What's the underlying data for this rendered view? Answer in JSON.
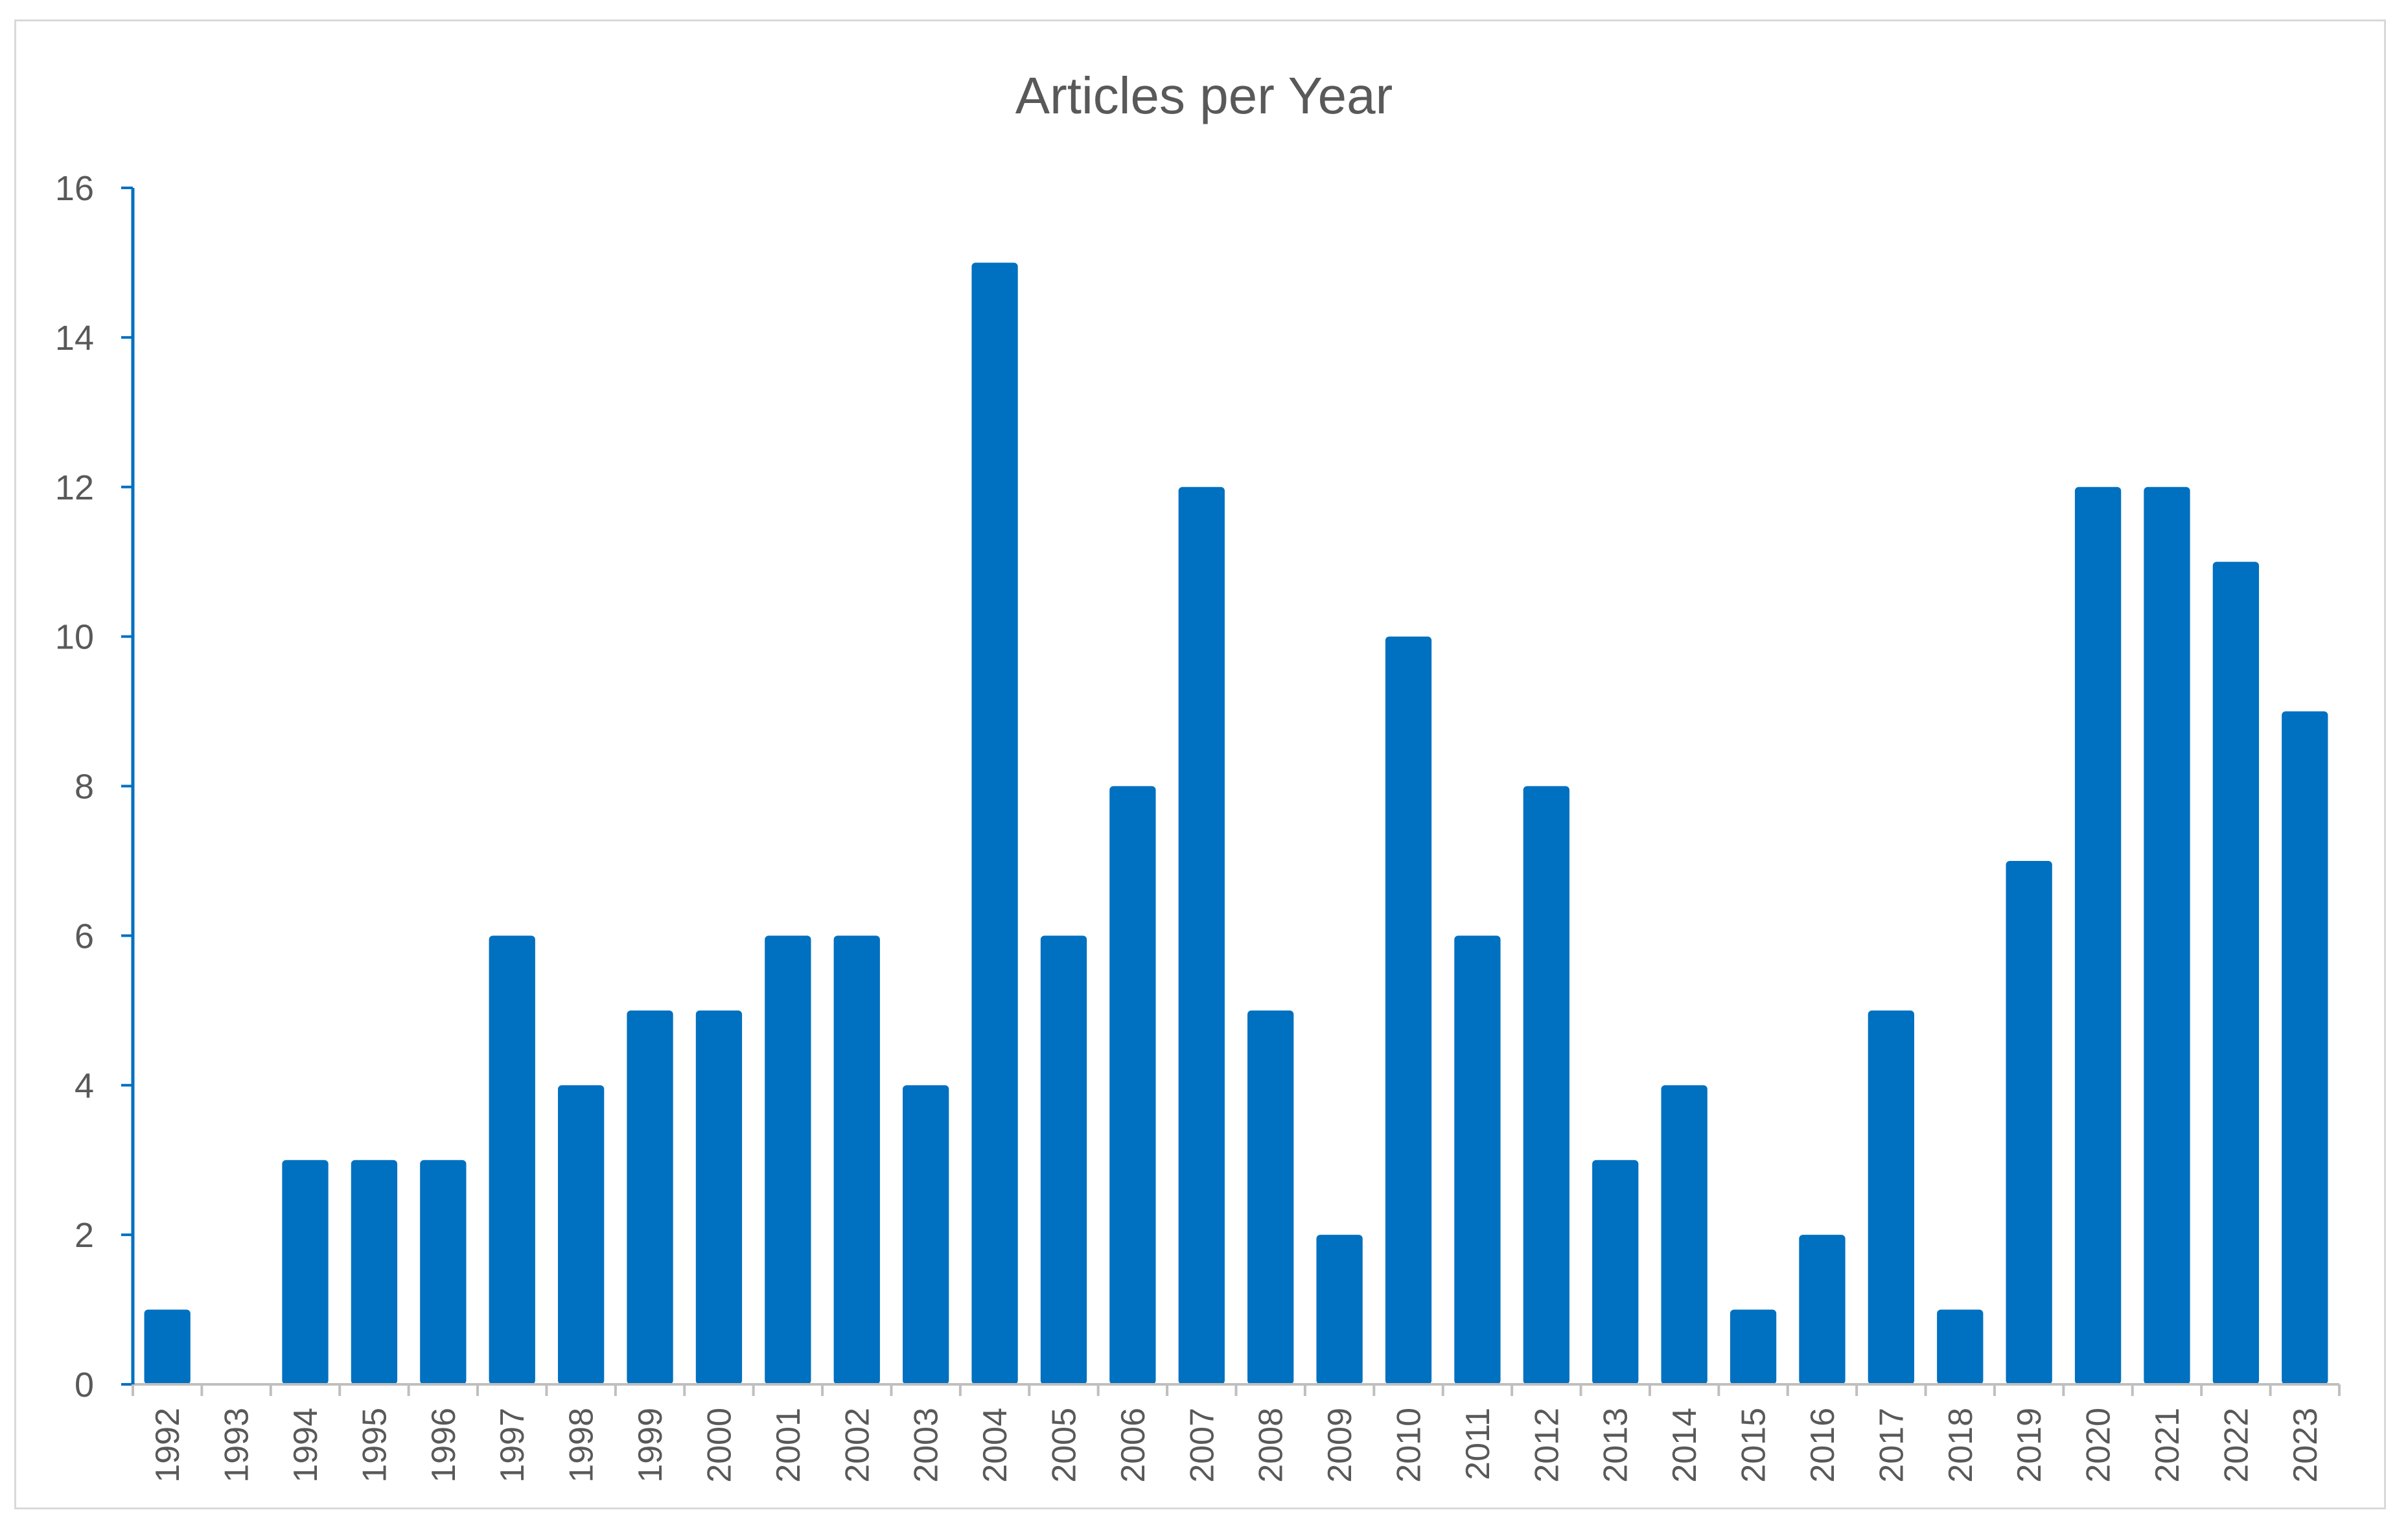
{
  "chart_data": {
    "type": "bar",
    "title": "Articles per Year",
    "xlabel": "",
    "ylabel": "",
    "ylim": [
      0,
      16
    ],
    "yticks": [
      0,
      2,
      4,
      6,
      8,
      10,
      12,
      14,
      16
    ],
    "grid": false,
    "legend": "none",
    "categories": [
      "1992",
      "1993",
      "1994",
      "1995",
      "1996",
      "1997",
      "1998",
      "1999",
      "2000",
      "2001",
      "2002",
      "2003",
      "2004",
      "2005",
      "2006",
      "2007",
      "2008",
      "2009",
      "2010",
      "2011",
      "2012",
      "2013",
      "2014",
      "2015",
      "2016",
      "2017",
      "2018",
      "2019",
      "2020",
      "2021",
      "2022",
      "2023"
    ],
    "values": [
      1,
      0,
      3,
      3,
      3,
      6,
      4,
      5,
      5,
      6,
      6,
      4,
      15,
      6,
      8,
      12,
      5,
      2,
      10,
      6,
      8,
      3,
      4,
      1,
      2,
      5,
      1,
      7,
      12,
      12,
      11,
      9
    ],
    "colors": {
      "bar": "#0070c0",
      "axis": "#0070c0",
      "xaxis": "#bfbfbf",
      "text": "#595959"
    }
  }
}
